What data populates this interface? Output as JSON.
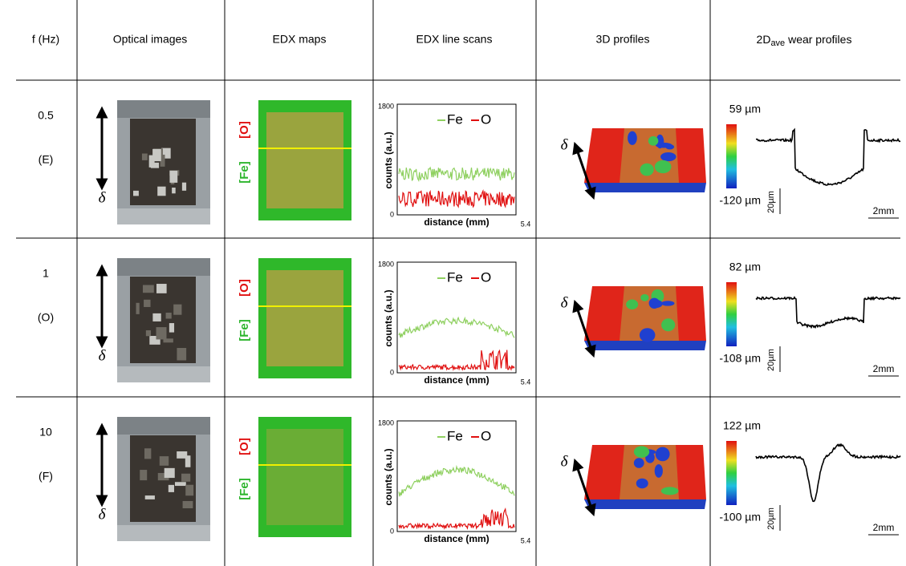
{
  "table": {
    "headers": [
      "f (Hz)",
      "Optical images",
      "EDX maps",
      "EDX line scans",
      "3D profiles",
      {
        "main": "2D",
        "sub": "ave",
        "rest": " wear profiles"
      }
    ],
    "rows": [
      {
        "f": "0.5",
        "regime": "(E)",
        "delta": "δ",
        "map_labels": [
          "[Fe]",
          "[O]"
        ],
        "line_scan": {
          "y_max": "1800",
          "y_min": "0",
          "x_label": "distance (mm)",
          "x_max": "5.4",
          "y_label": "counts (a.u.)",
          "legend": [
            "Fe",
            "O"
          ]
        },
        "profile_3d": {
          "max": "59 µm",
          "min": "-120 µm",
          "delta": "δ"
        },
        "profile_2d": {
          "z_scale": "20µm",
          "x_scale": "2mm"
        }
      },
      {
        "f": "1",
        "regime": "(O)",
        "delta": "δ",
        "map_labels": [
          "[Fe]",
          "[O]"
        ],
        "line_scan": {
          "y_max": "1800",
          "y_min": "0",
          "x_label": "distance (mm)",
          "x_max": "5.4",
          "y_label": "counts (a.u.)",
          "legend": [
            "Fe",
            "O"
          ]
        },
        "profile_3d": {
          "max": "82 µm",
          "min": "-108 µm",
          "delta": "δ"
        },
        "profile_2d": {
          "z_scale": "20µm",
          "x_scale": "2mm"
        }
      },
      {
        "f": "10",
        "regime": "(F)",
        "delta": "δ",
        "map_labels": [
          "[Fe]",
          "[O]"
        ],
        "line_scan": {
          "y_max": "1800",
          "y_min": "0",
          "x_label": "distance (mm)",
          "x_max": "5.4",
          "y_label": "counts (a.u.)",
          "legend": [
            "Fe",
            "O"
          ]
        },
        "profile_3d": {
          "max": "122 µm",
          "min": "-100 µm",
          "delta": "δ"
        },
        "profile_2d": {
          "z_scale": "20µm",
          "x_scale": "2mm"
        }
      }
    ]
  }
}
